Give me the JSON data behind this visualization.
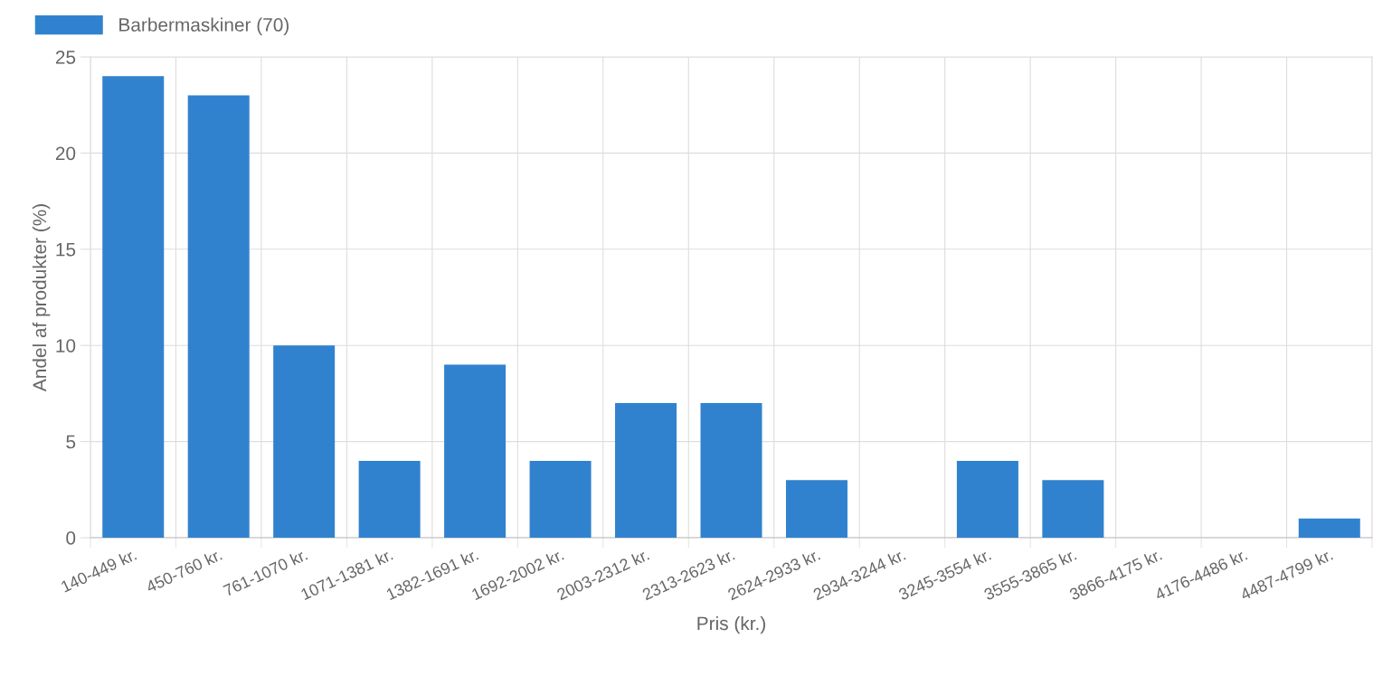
{
  "chart_data": {
    "type": "bar",
    "xlabel": "Pris (kr.)",
    "ylabel": "Andel af produkter (%)",
    "categories": [
      "140-449 kr.",
      "450-760 kr.",
      "761-1070 kr.",
      "1071-1381 kr.",
      "1382-1691 kr.",
      "1692-2002 kr.",
      "2003-2312 kr.",
      "2313-2623 kr.",
      "2624-2933 kr.",
      "2934-3244 kr.",
      "3245-3554 kr.",
      "3555-3865 kr.",
      "3866-4175 kr.",
      "4176-4486 kr.",
      "4487-4799 kr."
    ],
    "series": [
      {
        "name": "Barbermaskiner (70)",
        "color": "#3182ce",
        "values": [
          24,
          23,
          10,
          4,
          9,
          4,
          7,
          7,
          3,
          0,
          4,
          3,
          0,
          0,
          1
        ]
      }
    ],
    "ylim": [
      0,
      25
    ],
    "yticks": [
      0,
      5,
      10,
      15,
      20,
      25
    ],
    "grid": true,
    "legend": "top left"
  }
}
